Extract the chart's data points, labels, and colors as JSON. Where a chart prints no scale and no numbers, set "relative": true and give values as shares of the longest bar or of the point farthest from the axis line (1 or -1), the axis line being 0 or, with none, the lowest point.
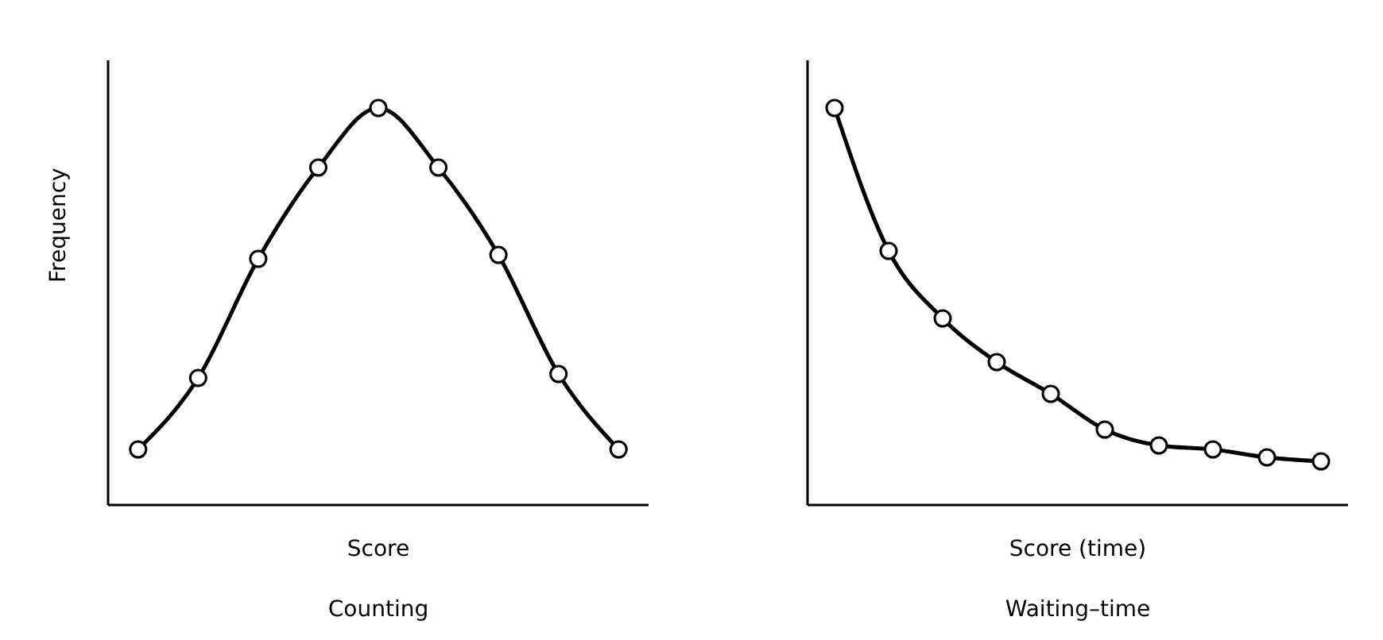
{
  "chart_data": [
    {
      "type": "line",
      "title": "Counting",
      "xlabel": "Score",
      "ylabel": "Frequency",
      "relative": true,
      "marker": "circle",
      "line_style": "solid",
      "categories": [
        null,
        null,
        null,
        null,
        null,
        null,
        null,
        null,
        null
      ],
      "series": [
        {
          "color": "#000000",
          "values": [
            0.14,
            0.32,
            0.62,
            0.85,
            1,
            0.85,
            0.63,
            0.33,
            0.14
          ]
        }
      ]
    },
    {
      "type": "line",
      "title": "Waiting–time",
      "xlabel": "Score (time)",
      "relative": true,
      "marker": "circle",
      "line_style": "solid",
      "categories": [
        null,
        null,
        null,
        null,
        null,
        null,
        null,
        null,
        null,
        null
      ],
      "series": [
        {
          "color": "#000000",
          "values": [
            1,
            0.64,
            0.47,
            0.36,
            0.28,
            0.19,
            0.15,
            0.14,
            0.12,
            0.11
          ]
        }
      ]
    }
  ]
}
